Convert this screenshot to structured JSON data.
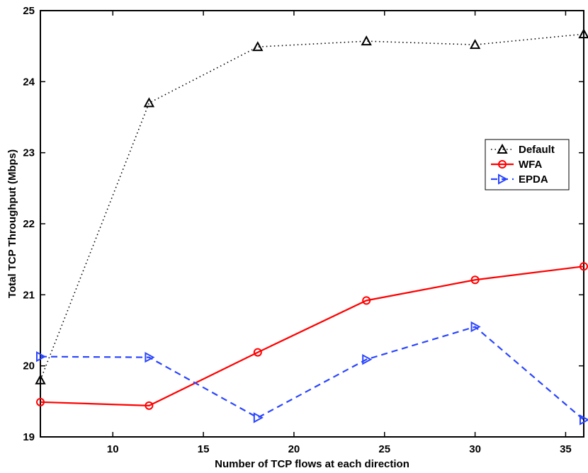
{
  "chart_data": {
    "type": "line",
    "title": "",
    "xlabel": "Number of TCP flows at each direction",
    "ylabel": "Total TCP Throughput (Mbps)",
    "xlim": [
      6,
      36
    ],
    "ylim": [
      19,
      25
    ],
    "xticks": [
      10,
      15,
      20,
      25,
      30,
      35
    ],
    "yticks": [
      19,
      20,
      21,
      22,
      23,
      24,
      25
    ],
    "legend_position": "right",
    "series": [
      {
        "name": "Default",
        "color": "#000000",
        "line_style": "dotted",
        "marker": "triangle-up",
        "x": [
          6,
          12,
          18,
          24,
          30,
          36
        ],
        "y": [
          19.8,
          23.7,
          24.49,
          24.57,
          24.52,
          24.67
        ]
      },
      {
        "name": "WFA",
        "color": "#ff0000",
        "line_style": "solid",
        "marker": "circle",
        "x": [
          6,
          12,
          18,
          24,
          30,
          36
        ],
        "y": [
          19.49,
          19.44,
          20.19,
          20.92,
          21.21,
          21.4
        ]
      },
      {
        "name": "EPDA",
        "color": "#2a45ff",
        "line_style": "dashed",
        "marker": "triangle-right",
        "x": [
          6,
          12,
          18,
          24,
          30,
          36
        ],
        "y": [
          20.13,
          20.12,
          19.27,
          20.09,
          20.55,
          19.24
        ]
      }
    ]
  }
}
